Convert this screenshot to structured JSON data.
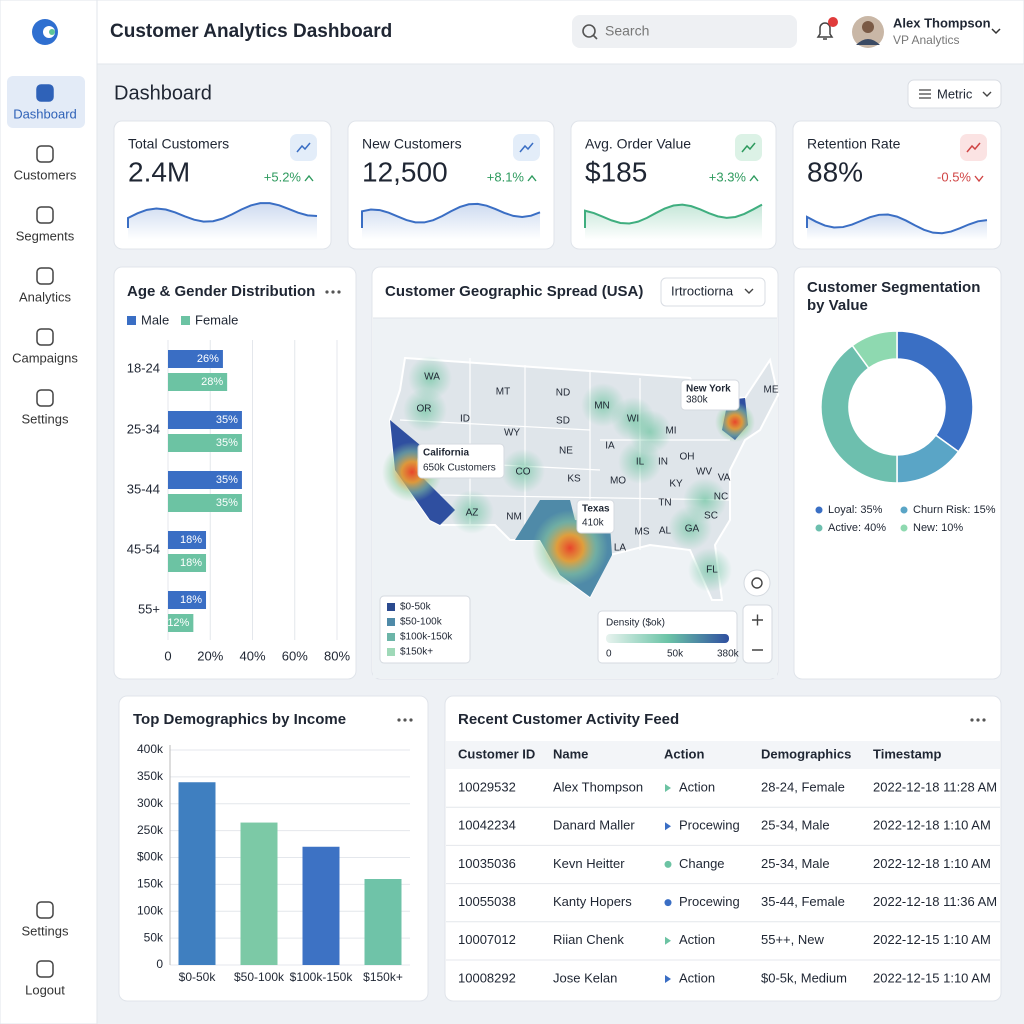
{
  "header": {
    "title": "Customer Analytics Dashboard",
    "search_placeholder": "Search",
    "user_name": "Alex Thompson",
    "user_role": "VP Analytics"
  },
  "sidebar": {
    "items": [
      "Dashboard",
      "Customers",
      "Segments",
      "Analytics",
      "Campaigns",
      "Settings"
    ],
    "bottom_items": [
      "Settings",
      "Logout"
    ]
  },
  "page": {
    "title": "Dashboard",
    "metric_button": "Metric"
  },
  "kpis": [
    {
      "label": "Total Customers",
      "value": "2.4M",
      "change": "+5.2%",
      "color": "#2e9a5e"
    },
    {
      "label": "New Customers",
      "value": "12,500",
      "change": "+8.1%",
      "color": "#2e9a5e"
    },
    {
      "label": "Avg. Order Value",
      "value": "$185",
      "change": "+3.3%",
      "color": "#2e9a5e"
    },
    {
      "label": "Retention Rate",
      "value": "88%",
      "change": "-0.5%",
      "color": "#d04545"
    }
  ],
  "map": {
    "title": "Customer Geographic Spread (USA)",
    "dropdown": "Irtroctiorna",
    "states": [
      "WA",
      "OR",
      "ID",
      "MT",
      "ND",
      "SD",
      "WY",
      "NE",
      "CO",
      "KS",
      "AZ",
      "NM",
      "MN",
      "WI",
      "IA",
      "MO",
      "IL",
      "IN",
      "MI",
      "OH",
      "KY",
      "TN",
      "MS",
      "AL",
      "GA",
      "LA",
      "FL",
      "SC",
      "NC",
      "VA",
      "WV",
      "ME"
    ],
    "callouts": [
      {
        "title": "California",
        "text": "650k Customers"
      },
      {
        "title": "Texas",
        "text": "410k"
      },
      {
        "title": "New York",
        "text": "380k"
      }
    ],
    "legend": [
      "$0-50k",
      "$50-100k",
      "$100k-150k",
      "$150k+"
    ],
    "legend_colors": [
      "#2b4a8f",
      "#4f8aa8",
      "#6cb5a8",
      "#9fd9b8"
    ],
    "density": {
      "title": "Density ($ok)",
      "labels": [
        "0",
        "50k",
        "380k"
      ]
    }
  },
  "table": {
    "title": "Recent Customer Activity Feed",
    "columns": [
      "Customer ID",
      "Name",
      "Action",
      "Demographics",
      "Timestamp"
    ],
    "rows": [
      [
        "10029532",
        "Alex Thompson",
        "Action",
        "28-24, Female",
        "2022-12-18 11:28 AM"
      ],
      [
        "10042234",
        "Danard Maller",
        "Procewing",
        "25-34, Male",
        "2022-12-18 1:10 AM"
      ],
      [
        "10035036",
        "Kevn Heitter",
        "Change",
        "25-34, Male",
        "2022-12-18 1:10 AM"
      ],
      [
        "10055038",
        "Kanty Hopers",
        "Procewing",
        "35-44, Female",
        "2022-12-18 11:36 AM"
      ],
      [
        "10007012",
        "Riian Chenk",
        "Action",
        "55++, New",
        "2022-12-15 1:10 AM"
      ],
      [
        "10008292",
        "Jose Kelan",
        "Action",
        "$0-5k, Medium",
        "2022-12-15 1:10 AM"
      ]
    ]
  },
  "chart_data": [
    {
      "type": "bar",
      "orientation": "horizontal",
      "title": "Age & Gender Distribution",
      "categories": [
        "18-24",
        "25-34",
        "35-44",
        "45-54",
        "55+"
      ],
      "series": [
        {
          "name": "Male",
          "color": "#3a6ec4",
          "values": [
            26,
            35,
            35,
            18,
            18
          ],
          "value_labels": [
            "26%",
            "35%",
            "35%",
            "18%",
            "18%"
          ]
        },
        {
          "name": "Female",
          "color": "#6cc3a3",
          "values": [
            28,
            35,
            35,
            18,
            12
          ],
          "value_labels": [
            "28%",
            "35%",
            "35%",
            "18%",
            "12%"
          ]
        }
      ],
      "xlim": [
        0,
        80
      ],
      "xticks": [
        0,
        {
          "value": 20,
          "label": "20%"
        },
        {
          "value": 40,
          "label": "40%"
        },
        {
          "value": 60,
          "label": "60%"
        },
        {
          "value": 80,
          "label": "80%"
        }
      ],
      "grid": true
    },
    {
      "type": "pie",
      "title": "Customer Segmentation by Value",
      "values": [
        35,
        15,
        40,
        10
      ],
      "value_labels": [
        "Loyal: 35%",
        "Churn Risk: 15%",
        "Active: 40%",
        "New: 10%"
      ],
      "colors": [
        "#3a6fc4",
        "#5aa5c6",
        "#6dbfae",
        "#8ed9b0"
      ],
      "donut": true
    },
    {
      "type": "bar",
      "title": "Top Demographics by Income",
      "categories": [
        "$0-50k",
        "$50-100k",
        "$100k-150k",
        "$150k+"
      ],
      "values": [
        340000,
        265000,
        220000,
        160000
      ],
      "colors": [
        "#3f7fc0",
        "#7cc9a6",
        "#3d72c4",
        "#6fc3a8"
      ],
      "ylim": [
        0,
        400000
      ],
      "yticks": [
        0,
        {
          "value": 50000,
          "label": "50k"
        },
        {
          "value": 100000,
          "label": "100k"
        },
        {
          "value": 150000,
          "label": "150k"
        },
        {
          "value": 200000,
          "label": "$00k"
        },
        {
          "value": 250000,
          "label": "250k"
        },
        {
          "value": 300000,
          "label": "300k"
        },
        {
          "value": 350000,
          "label": "350k"
        },
        {
          "value": 400000,
          "label": "400k"
        }
      ],
      "grid": true
    }
  ]
}
